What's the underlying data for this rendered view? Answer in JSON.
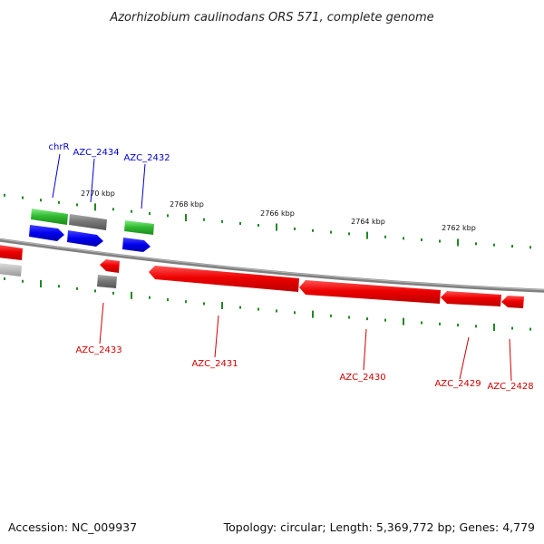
{
  "title": "Azorhizobium caulinodans ORS 571, complete genome",
  "footer": {
    "accession": "Accession: NC_009937",
    "summary": "Topology: circular; Length: 5,369,772 bp; Genes: 4,779"
  },
  "colors": {
    "forward_label": "#0000cc",
    "reverse_label": "#cc0000",
    "backbone": "#808080",
    "tick_dots": "#228822",
    "gene_green": "#33bb33",
    "gene_gray": "#777777",
    "gene_blue": "#0000ee",
    "gene_red": "#ee0000"
  },
  "scale_ticks": [
    "2770 kbp",
    "2768 kbp",
    "2766 kbp",
    "2764 kbp",
    "2762 kbp"
  ],
  "forward_labels": [
    "chrR",
    "AZC_2434",
    "AZC_2432"
  ],
  "reverse_labels": [
    "AZC_2433",
    "AZC_2431",
    "AZC_2430",
    "AZC_2429",
    "AZC_2428"
  ]
}
